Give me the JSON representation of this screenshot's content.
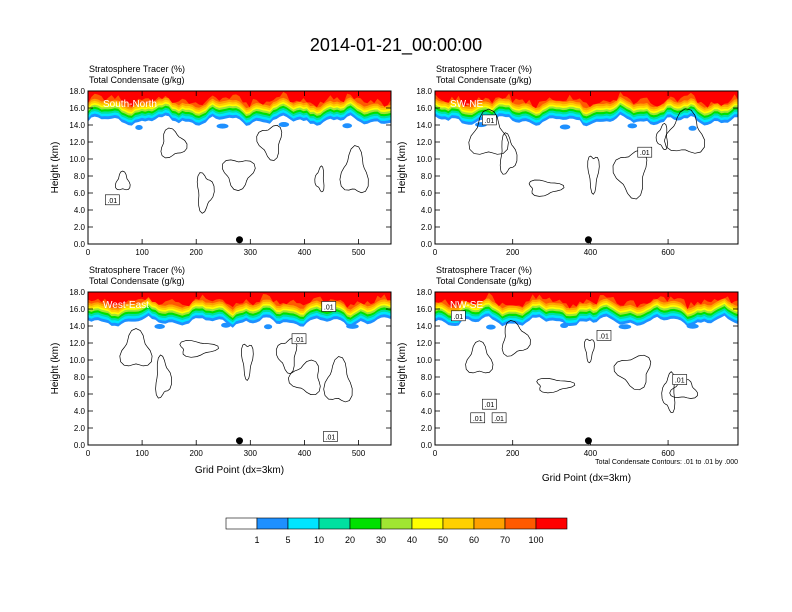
{
  "title": "2014-01-21_00:00:00",
  "panels": [
    {
      "id": "south-north",
      "line1": "Stratosphere Tracer   (%)",
      "line2": "Total Condensate   (g/kg)",
      "label": "South-North",
      "xticks": [
        "0",
        "100",
        "200",
        "300",
        "400",
        "500"
      ],
      "xmax": 560,
      "xlabel": "",
      "ylabel": "Height (km)",
      "yticks": [
        "0.0",
        "2.0",
        "4.0",
        "6.0",
        "8.0",
        "10.0",
        "12.0",
        "14.0",
        "16.0",
        "18.0"
      ],
      "dot_x": 280,
      "contour_labels": [
        {
          "text": ".01",
          "x": 45,
          "y": 5.2
        }
      ]
    },
    {
      "id": "sw-ne",
      "line1": "Stratosphere Tracer   (%)",
      "line2": "Total Condensate   (g/kg)",
      "label": "SW-NE",
      "xticks": [
        "0",
        "200",
        "400",
        "600"
      ],
      "xmax": 780,
      "xlabel": "",
      "ylabel": "Height (km)",
      "yticks": [
        "0.0",
        "2.0",
        "4.0",
        "6.0",
        "8.0",
        "10.0",
        "12.0",
        "14.0",
        "16.0",
        "18.0"
      ],
      "dot_x": 395,
      "contour_labels": [
        {
          "text": ".01",
          "x": 140,
          "y": 14.6
        },
        {
          "text": ".01",
          "x": 540,
          "y": 10.8
        }
      ]
    },
    {
      "id": "west-east",
      "line1": "Stratosphere Tracer   (%)",
      "line2": "Total Condensate   (g/kg)",
      "label": "West-East",
      "xticks": [
        "0",
        "100",
        "200",
        "300",
        "400",
        "500"
      ],
      "xmax": 560,
      "xlabel": "Grid Point (dx=3km)",
      "ylabel": "Height (km)",
      "yticks": [
        "0.0",
        "2.0",
        "4.0",
        "6.0",
        "8.0",
        "10.0",
        "12.0",
        "14.0",
        "16.0",
        "18.0"
      ],
      "dot_x": 280,
      "contour_labels": [
        {
          "text": ".01",
          "x": 390,
          "y": 12.5
        },
        {
          "text": ".01",
          "x": 445,
          "y": 16.3
        },
        {
          "text": ".01",
          "x": 448,
          "y": 1.0
        }
      ]
    },
    {
      "id": "nw-se",
      "line1": "Stratosphere Tracer   (%)",
      "line2": "Total Condensate   (g/kg)",
      "label": "NW-SE",
      "xticks": [
        "0",
        "200",
        "400",
        "600"
      ],
      "xmax": 780,
      "xlabel": "Grid Point (dx=3km)",
      "ylabel": "Height (km)",
      "yticks": [
        "0.0",
        "2.0",
        "4.0",
        "6.0",
        "8.0",
        "10.0",
        "12.0",
        "14.0",
        "16.0",
        "18.0"
      ],
      "dot_x": 395,
      "contour_labels": [
        {
          "text": ".01",
          "x": 60,
          "y": 15.2
        },
        {
          "text": ".01",
          "x": 140,
          "y": 4.8
        },
        {
          "text": ".01",
          "x": 110,
          "y": 3.2
        },
        {
          "text": ".01",
          "x": 165,
          "y": 3.2
        },
        {
          "text": ".01",
          "x": 435,
          "y": 12.9
        },
        {
          "text": ".01",
          "x": 630,
          "y": 7.7
        }
      ]
    }
  ],
  "contour_note": "Total Condensate Contours: .01 to .01 by .000",
  "colorbar": {
    "labels": [
      "1",
      "5",
      "10",
      "20",
      "30",
      "40",
      "50",
      "60",
      "70",
      "100"
    ],
    "colors": [
      "#ffffff",
      "#1e90ff",
      "#00e5ff",
      "#00e0a0",
      "#00e000",
      "#a0e632",
      "#ffff00",
      "#ffd000",
      "#ffa000",
      "#ff5a00",
      "#ff0000"
    ]
  },
  "chart_data": {
    "type": "heatmap",
    "title": "2014-01-21_00:00:00",
    "xlabel": "Grid Point (dx=3km)",
    "ylabel": "Height (km)",
    "ylim": [
      0,
      18
    ],
    "panels": [
      "South-North",
      "SW-NE",
      "West-East",
      "NW-SE"
    ],
    "xlim": {
      "South-North": [
        0,
        560
      ],
      "SW-NE": [
        0,
        780
      ],
      "West-East": [
        0,
        560
      ],
      "NW-SE": [
        0,
        780
      ]
    },
    "shading": "Stratosphere Tracer (%)",
    "contours": "Total Condensate (g/kg)",
    "levels": [
      1,
      5,
      10,
      20,
      30,
      40,
      50,
      60,
      70,
      100
    ]
  }
}
